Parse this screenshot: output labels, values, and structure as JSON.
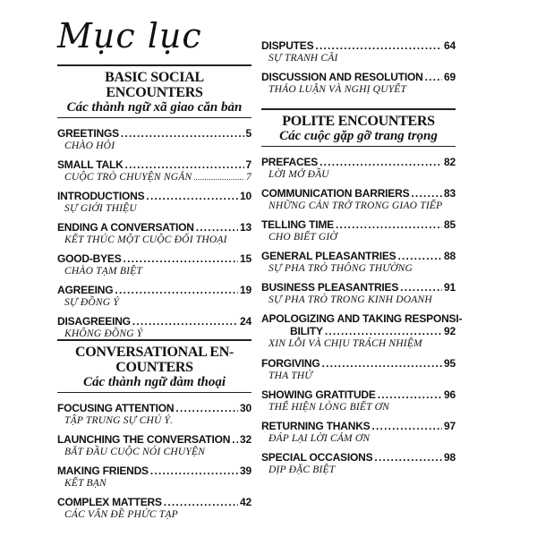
{
  "title": "Mục lục",
  "left": {
    "sections": [
      {
        "heading": [
          "BASIC SOCIAL ENCOUNTERS"
        ],
        "subtitle": "Các thành ngữ xã giao căn bản",
        "entries": [
          {
            "title": "GREETINGS",
            "page": "5",
            "vi": "CHÀO HỎI"
          },
          {
            "title": "SMALL TALK",
            "page": "7",
            "vi": "CUỘC TRÒ CHUYỆN NGẮN",
            "vi_page": "7"
          },
          {
            "title": "INTRODUCTIONS",
            "page": "10",
            "vi": "SỰ GIỚI THIỆU"
          },
          {
            "title": "ENDING A CONVERSATION",
            "page": "13",
            "vi": "KẾT THÚC MỘT CUỘC ĐỐI THOẠI"
          },
          {
            "title": "GOOD-BYES",
            "page": "15",
            "vi": "CHÀO TẠM BIỆT"
          },
          {
            "title": "AGREEING",
            "page": "19",
            "vi": "SỰ ĐỒNG Ý"
          },
          {
            "title": "DISAGREEING",
            "page": "24",
            "vi": "KHÔNG ĐỒNG Ý"
          }
        ]
      },
      {
        "heading": [
          "CONVERSATIONAL EN-",
          "COUNTERS"
        ],
        "subtitle": "Các thành ngữ đàm thoại",
        "entries": [
          {
            "title": "FOCUSING ATTENTION",
            "page": "30",
            "vi": "TẬP TRUNG SỰ CHÚ Ý."
          },
          {
            "title": "LAUNCHING THE CONVERSATION",
            "page": "32",
            "vi": "BẮT ĐẦU CUỘC NÓI CHUYỆN"
          },
          {
            "title": "MAKING FRIENDS",
            "page": "39",
            "vi": "KẾT BẠN"
          },
          {
            "title": "COMPLEX MATTERS",
            "page": "42",
            "vi": "CÁC VẤN ĐỀ PHỨC TẠP"
          }
        ]
      }
    ]
  },
  "right": {
    "continued": [
      {
        "title": "DISPUTES",
        "page": "64",
        "vi": "SỰ TRANH CÃI"
      },
      {
        "title": "DISCUSSION AND RESOLUTION",
        "page": "69",
        "vi": "THẢO LUẬN VÀ NGHỊ QUYẾT"
      }
    ],
    "section": {
      "heading": [
        "POLITE ENCOUNTERS"
      ],
      "subtitle": "Các cuộc gặp gỡ trang trọng",
      "entries": [
        {
          "title": "PREFACES",
          "page": "82",
          "vi": "LỜI MỞ ĐẦU"
        },
        {
          "title": "COMMUNICATION BARRIERS",
          "page": "83",
          "vi": "NHỮNG CẢN TRỞ TRONG GIAO TIẾP"
        },
        {
          "title": "TELLING TIME",
          "page": "85",
          "vi": "CHO BIẾT GIỜ"
        },
        {
          "title": "GENERAL PLEASANTRIES",
          "page": "88",
          "vi": "SỰ PHA TRÒ THÔNG THƯỜNG"
        },
        {
          "title": "BUSINESS PLEASANTRIES",
          "page": "91",
          "vi": "SỰ PHA TRÒ TRONG KINH DOANH"
        },
        {
          "title": "APOLOGIZING AND TAKING RESPONSI-",
          "title2": "BILITY",
          "page": "92",
          "vi": "XIN LỖI VÀ CHỊU TRÁCH NHIỆM"
        },
        {
          "title": "FORGIVING",
          "page": "95",
          "vi": "THA THỨ"
        },
        {
          "title": "SHOWING GRATITUDE",
          "page": "96",
          "vi": "THỂ HIỆN LÒNG BIẾT ƠN"
        },
        {
          "title": "RETURNING THANKS",
          "page": "97",
          "vi": "ĐÁP LẠI LỜI CẢM ƠN"
        },
        {
          "title": "SPECIAL OCCASIONS",
          "page": "98",
          "vi": "DỊP ĐẶC BIỆT"
        }
      ]
    }
  }
}
